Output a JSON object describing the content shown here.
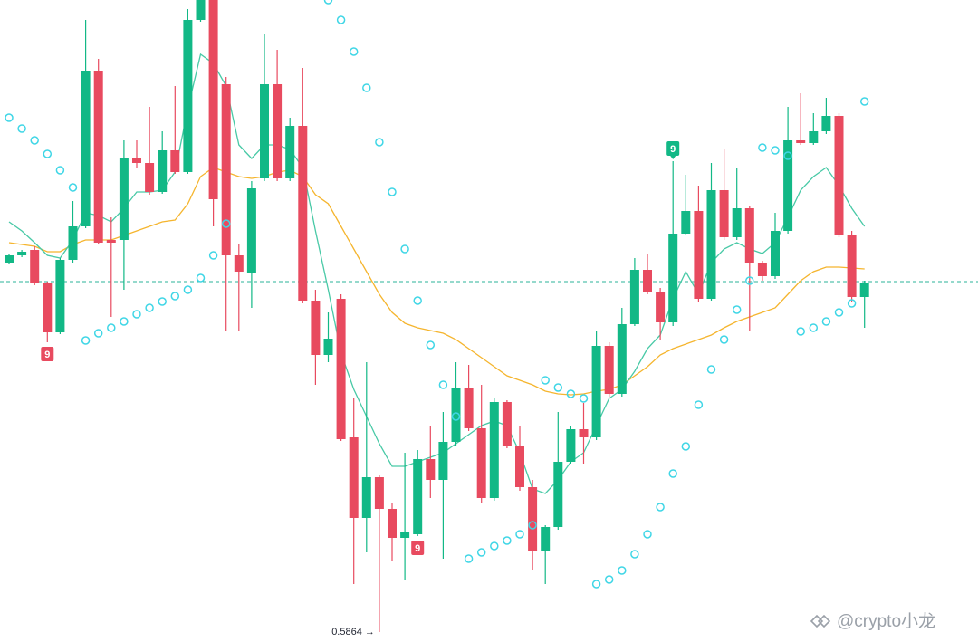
{
  "chart_data": {
    "type": "candlestick",
    "ylim": [
      0.5853,
      0.6562
    ],
    "up_color": "#12b886",
    "down_color": "#e84a5f",
    "open": [
      0.6272,
      0.628,
      0.6286,
      0.6249,
      0.6195,
      0.6275,
      0.6312,
      0.6484,
      0.6297,
      0.6297,
      0.6387,
      0.6382,
      0.635,
      0.6396,
      0.6372,
      0.654,
      0.6562,
      0.6469,
      0.628,
      0.626,
      0.6365,
      0.6469,
      0.6365,
      0.6423,
      0.623,
      0.617,
      0.6232,
      0.6079,
      0.599,
      0.6035,
      0.6,
      0.5968,
      0.5972,
      0.6055,
      0.6032,
      0.6074,
      0.6134,
      0.6089,
      0.6012,
      0.6118,
      0.607,
      0.6024,
      0.5954,
      0.598,
      0.6052,
      0.6088,
      0.6079,
      0.618,
      0.6127,
      0.6204,
      0.6264,
      0.624,
      0.6206,
      0.6304,
      0.6329,
      0.6232,
      0.6352,
      0.63,
      0.6332,
      0.6272,
      0.6257,
      0.6307,
      0.6407,
      0.6404,
      0.6417,
      0.6434,
      0.6302,
      0.6234
    ],
    "high": [
      0.6282,
      0.6286,
      0.629,
      0.6251,
      0.6277,
      0.634,
      0.654,
      0.6497,
      0.6322,
      0.6407,
      0.6407,
      0.6444,
      0.6417,
      0.6467,
      0.6552,
      0.6562,
      0.6562,
      0.6477,
      0.6292,
      0.6362,
      0.6524,
      0.6507,
      0.6432,
      0.6487,
      0.6242,
      0.6217,
      0.6237,
      0.6122,
      0.6162,
      0.6037,
      0.6007,
      0.6062,
      0.6065,
      0.6092,
      0.6107,
      0.6162,
      0.6159,
      0.6137,
      0.6122,
      0.612,
      0.6092,
      0.6032,
      0.5982,
      0.6107,
      0.6092,
      0.6117,
      0.6197,
      0.6184,
      0.6222,
      0.6277,
      0.6282,
      0.6244,
      0.6384,
      0.6369,
      0.6357,
      0.6382,
      0.6397,
      0.6377,
      0.6334,
      0.6274,
      0.6327,
      0.6444,
      0.6459,
      0.6437,
      0.6454,
      0.6437,
      0.6307,
      0.6252
    ],
    "low": [
      0.627,
      0.6278,
      0.6247,
      0.6184,
      0.6193,
      0.6272,
      0.631,
      0.6292,
      0.6212,
      0.6242,
      0.6377,
      0.6347,
      0.6348,
      0.637,
      0.637,
      0.6538,
      0.6312,
      0.6197,
      0.6197,
      0.6222,
      0.6362,
      0.6362,
      0.6362,
      0.6227,
      0.6137,
      0.6162,
      0.6075,
      0.5917,
      0.5952,
      0.5864,
      0.5942,
      0.5922,
      0.597,
      0.6012,
      0.5945,
      0.607,
      0.6086,
      0.6007,
      0.6009,
      0.6067,
      0.602,
      0.5932,
      0.5917,
      0.5977,
      0.605,
      0.605,
      0.6076,
      0.6124,
      0.6124,
      0.6202,
      0.6237,
      0.6187,
      0.6202,
      0.6302,
      0.6229,
      0.623,
      0.6297,
      0.6297,
      0.6197,
      0.6252,
      0.6254,
      0.6304,
      0.6402,
      0.6402,
      0.6414,
      0.63,
      0.6229,
      0.62
    ],
    "close": [
      0.628,
      0.6284,
      0.6249,
      0.6195,
      0.6275,
      0.6312,
      0.6484,
      0.6294,
      0.6294,
      0.6387,
      0.6382,
      0.635,
      0.6396,
      0.6372,
      0.654,
      0.6562,
      0.6342,
      0.628,
      0.6262,
      0.6354,
      0.6469,
      0.6365,
      0.6423,
      0.623,
      0.617,
      0.6188,
      0.6077,
      0.599,
      0.6035,
      0.6,
      0.5968,
      0.5974,
      0.6055,
      0.6032,
      0.6074,
      0.6134,
      0.6089,
      0.6012,
      0.6118,
      0.607,
      0.6024,
      0.5954,
      0.598,
      0.6052,
      0.6088,
      0.6079,
      0.618,
      0.6127,
      0.6204,
      0.6264,
      0.624,
      0.6206,
      0.6304,
      0.6329,
      0.6232,
      0.6352,
      0.63,
      0.6332,
      0.6272,
      0.6257,
      0.6307,
      0.6407,
      0.6404,
      0.6417,
      0.6434,
      0.6302,
      0.6234,
      0.625
    ],
    "ma_fast": {
      "color": "#48c9a6",
      "values": [
        0.6317,
        0.6307,
        0.6294,
        0.628,
        0.6277,
        0.6297,
        0.6327,
        0.6324,
        0.6317,
        0.6332,
        0.635,
        0.635,
        0.6352,
        0.6372,
        0.6442,
        0.6502,
        0.6492,
        0.6467,
        0.6402,
        0.6387,
        0.6402,
        0.6402,
        0.6397,
        0.6377,
        0.6307,
        0.6242,
        0.6172,
        0.6132,
        0.6102,
        0.6072,
        0.6047,
        0.6047,
        0.6052,
        0.6057,
        0.6062,
        0.6072,
        0.6082,
        0.6092,
        0.6097,
        0.6092,
        0.6062,
        0.6022,
        0.6017,
        0.6032,
        0.6052,
        0.6062,
        0.6092,
        0.6122,
        0.6132,
        0.6152,
        0.6177,
        0.6192,
        0.6232,
        0.6262,
        0.6237,
        0.6272,
        0.6287,
        0.6294,
        0.6287,
        0.6282,
        0.6294,
        0.6322,
        0.6352,
        0.6367,
        0.6377,
        0.6357,
        0.6332,
        0.6312
      ]
    },
    "ma_slow": {
      "color": "#f5b52e",
      "values": [
        0.6294,
        0.6292,
        0.629,
        0.6284,
        0.6284,
        0.6292,
        0.6297,
        0.6297,
        0.6297,
        0.6302,
        0.6307,
        0.6312,
        0.6317,
        0.6319,
        0.6337,
        0.6367,
        0.6377,
        0.6372,
        0.6367,
        0.6365,
        0.6367,
        0.6372,
        0.6374,
        0.6367,
        0.6347,
        0.6337,
        0.6312,
        0.6287,
        0.6262,
        0.6237,
        0.6217,
        0.6205,
        0.62,
        0.6197,
        0.6194,
        0.6187,
        0.6177,
        0.6167,
        0.6157,
        0.6147,
        0.6142,
        0.6137,
        0.613,
        0.6127,
        0.6126,
        0.6127,
        0.613,
        0.6132,
        0.6137,
        0.6147,
        0.6157,
        0.617,
        0.6177,
        0.6182,
        0.6187,
        0.6192,
        0.62,
        0.6207,
        0.6212,
        0.6217,
        0.6222,
        0.6237,
        0.6252,
        0.6262,
        0.6267,
        0.6267,
        0.6266,
        0.6265
      ]
    },
    "sar": {
      "color": "#3fd6e6",
      "values": [
        0.6432,
        0.642,
        0.6407,
        0.6392,
        0.6374,
        0.6355,
        0.6186,
        0.6194,
        0.62,
        0.6207,
        0.6215,
        0.6222,
        0.6229,
        0.6235,
        0.6242,
        0.6255,
        0.628,
        0.6315,
        null,
        null,
        null,
        null,
        null,
        null,
        null,
        0.6562,
        0.654,
        0.6505,
        0.6465,
        0.6405,
        0.635,
        0.6287,
        0.623,
        0.6181,
        0.6137,
        0.6102,
        0.5945,
        0.5952,
        0.5959,
        0.5965,
        0.5972,
        0.5982,
        0.6142,
        0.6134,
        0.6127,
        0.6122,
        0.5917,
        0.5922,
        0.5932,
        0.595,
        0.5972,
        0.6002,
        0.6039,
        0.6069,
        0.6115,
        0.6154,
        0.6187,
        0.622,
        0.6252,
        0.6399,
        0.6396,
        0.639,
        0.6196,
        0.62,
        0.6207,
        0.6217,
        0.6227,
        0.645
      ]
    },
    "last_price": {
      "value": 0.6251,
      "color": "#2bb39a"
    },
    "markers": [
      {
        "text": "9",
        "color": "#e84a5f"
      },
      {
        "text": "9",
        "color": "#e84a5f"
      },
      {
        "text": "9",
        "color": "#12b886"
      }
    ],
    "low_label": {
      "value": 0.5864,
      "label": "0.5864 →"
    },
    "watermark": "@crypto小龙"
  }
}
